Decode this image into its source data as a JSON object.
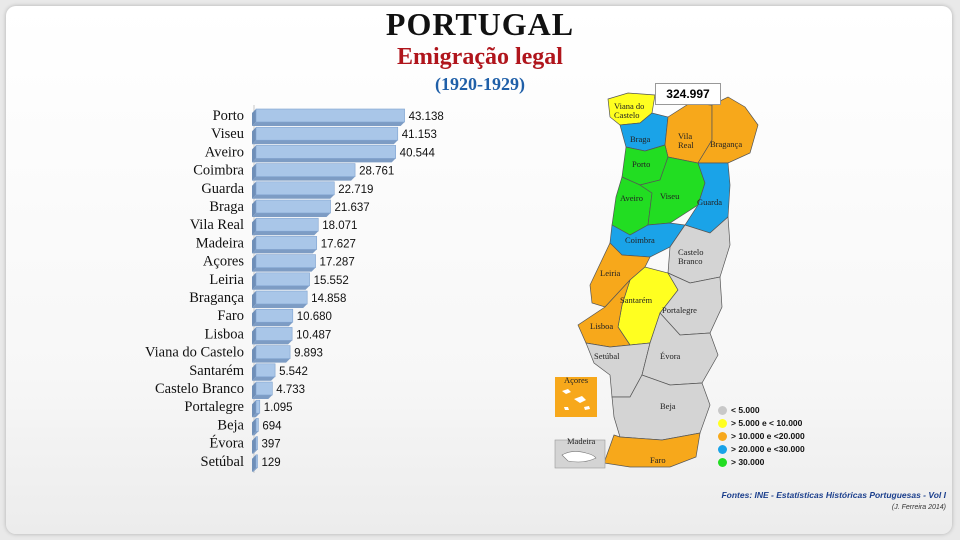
{
  "header": {
    "title": "PORTUGAL",
    "subtitle": "Emigração legal",
    "period": "(1920-1929)"
  },
  "chart_data": {
    "type": "bar",
    "orientation": "horizontal",
    "categories": [
      "Porto",
      "Viseu",
      "Aveiro",
      "Coimbra",
      "Guarda",
      "Braga",
      "Vila Real",
      "Madeira",
      "Açores",
      "Leiria",
      "Bragança",
      "Faro",
      "Lisboa",
      "Viana do Castelo",
      "Santarém",
      "Castelo Branco",
      "Portalegre",
      "Beja",
      "Évora",
      "Setúbal"
    ],
    "values": [
      43138,
      41153,
      40544,
      28761,
      22719,
      21637,
      18071,
      17627,
      17287,
      15552,
      14858,
      10680,
      10487,
      9893,
      5542,
      4733,
      1095,
      694,
      397,
      129
    ],
    "value_labels": [
      "43.138",
      "41.153",
      "40.544",
      "28.761",
      "22.719",
      "21.637",
      "18.071",
      "17.627",
      "17.287",
      "15.552",
      "14.858",
      "10.680",
      "10.487",
      "9.893",
      "5.542",
      "4.733",
      "1.095",
      "694",
      "397",
      "129"
    ],
    "xlim": [
      0,
      45000
    ],
    "grid": false,
    "bar_color": "#a9c6e8"
  },
  "map": {
    "total": "324.997",
    "district_labels": {
      "viana": "Viana do Castelo",
      "braga": "Braga",
      "vilareal": "Vila Real",
      "braganca": "Bragança",
      "porto": "Porto",
      "aveiro": "Aveiro",
      "viseu": "Viseu",
      "guarda": "Guarda",
      "coimbra": "Coimbra",
      "castelobranco": "Castelo Branco",
      "leiria": "Leiria",
      "santarem": "Santarém",
      "portalegre": "Portalegre",
      "lisboa": "Lisboa",
      "setubal": "Setúbal",
      "evora": "Évora",
      "beja": "Beja",
      "faro": "Faro",
      "acores": "Açores",
      "madeira": "Madeira"
    },
    "colors": {
      "gray": "#d4d4d4",
      "yellow": "#ffff20",
      "orange": "#f7a81b",
      "blue": "#1aa3e8",
      "green": "#22dd22"
    }
  },
  "legend": [
    {
      "label": "< 5.000",
      "color": "#c8c8c8"
    },
    {
      "label": "> 5.000 e < 10.000",
      "color": "#ffff20"
    },
    {
      "label": "> 10.000 e <20.000",
      "color": "#f7a81b"
    },
    {
      "label": "> 20.000 e <30.000",
      "color": "#1aa3e8"
    },
    {
      "label": "> 30.000",
      "color": "#22dd22"
    }
  ],
  "footer": {
    "source": "Fontes: INE - Estatísticas Históricas Portuguesas - Vol I",
    "credit": "(J. Ferreira 2014)"
  }
}
